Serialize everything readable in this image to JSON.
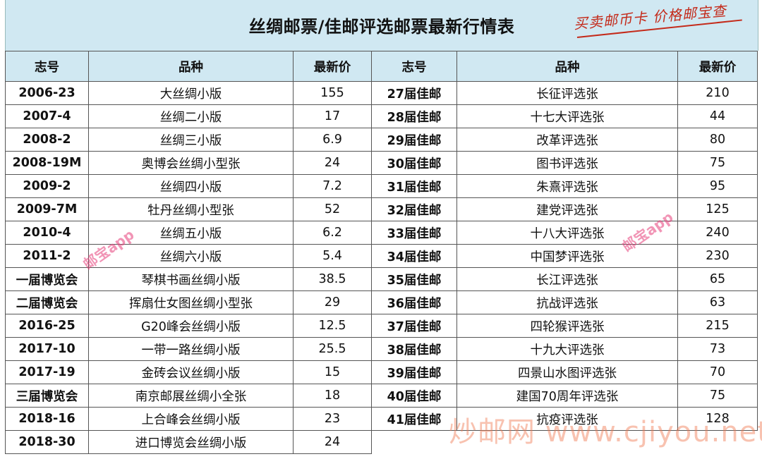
{
  "title": "丝绸邮票/佳邮评选邮票最新行情表",
  "slogan": "买卖邮币卡 价格邮宝查",
  "headers": [
    "志号",
    "品种",
    "最新价",
    "志号",
    "品种",
    "最新价"
  ],
  "left_rows": [
    {
      "code": "2006-23",
      "name": "大丝绸小版",
      "price": "155"
    },
    {
      "code": "2007-4",
      "name": "丝绸二小版",
      "price": "17"
    },
    {
      "code": "2008-2",
      "name": "丝绸三小版",
      "price": "6.9"
    },
    {
      "code": "2008-19M",
      "name": "奥博会丝绸小型张",
      "price": "24"
    },
    {
      "code": "2009-2",
      "name": "丝绸四小版",
      "price": "7.2"
    },
    {
      "code": "2009-7M",
      "name": "牡丹丝绸小型张",
      "price": "52"
    },
    {
      "code": "2010-4",
      "name": "丝绸五小版",
      "price": "6.2"
    },
    {
      "code": "2011-2",
      "name": "丝绸六小版",
      "price": "5.4"
    },
    {
      "code": "一届博览会",
      "name": "琴棋书画丝绸小版",
      "price": "38.5"
    },
    {
      "code": "二届博览会",
      "name": "挥扇仕女图丝绸小型张",
      "price": "29"
    },
    {
      "code": "2016-25",
      "name": "G20峰会丝绸小版",
      "price": "12.5"
    },
    {
      "code": "2017-10",
      "name": "一带一路丝绸小版",
      "price": "25.5"
    },
    {
      "code": "2017-19",
      "name": "金砖会议丝绸小版",
      "price": "15"
    },
    {
      "code": "三届博览会",
      "name": "南京邮展丝绸小全张",
      "price": "18"
    },
    {
      "code": "2018-16",
      "name": "上合峰会丝绸小版",
      "price": "23"
    },
    {
      "code": "2018-30",
      "name": "进口博览会丝绸小版",
      "price": "24"
    }
  ],
  "right_rows": [
    {
      "code": "27届佳邮",
      "name": "长征评选张",
      "price": "210"
    },
    {
      "code": "28届佳邮",
      "name": "十七大评选张",
      "price": "44"
    },
    {
      "code": "29届佳邮",
      "name": "改革评选张",
      "price": "80"
    },
    {
      "code": "30届佳邮",
      "name": "图书评选张",
      "price": "75"
    },
    {
      "code": "31届佳邮",
      "name": "朱熹评选张",
      "price": "95"
    },
    {
      "code": "32届佳邮",
      "name": "建党评选张",
      "price": "125"
    },
    {
      "code": "33届佳邮",
      "name": "十八大评选张",
      "price": "240"
    },
    {
      "code": "34届佳邮",
      "name": "中国梦评选张",
      "price": "230"
    },
    {
      "code": "35届佳邮",
      "name": "长江评选张",
      "price": "65"
    },
    {
      "code": "36届佳邮",
      "name": "抗战评选张",
      "price": "63"
    },
    {
      "code": "37届佳邮",
      "name": "四轮猴评选张",
      "price": "215"
    },
    {
      "code": "38届佳邮",
      "name": "十九大评选张",
      "price": "73"
    },
    {
      "code": "39届佳邮",
      "name": "四景山水图评选张",
      "price": "70"
    },
    {
      "code": "40届佳邮",
      "name": "建国70周年评选张",
      "price": "75"
    },
    {
      "code": "41届佳邮",
      "name": "抗疫评选张",
      "price": "128"
    }
  ],
  "watermarks": [
    "邮宝app",
    "邮宝app",
    "炒邮网 www.cjiyou.net"
  ]
}
